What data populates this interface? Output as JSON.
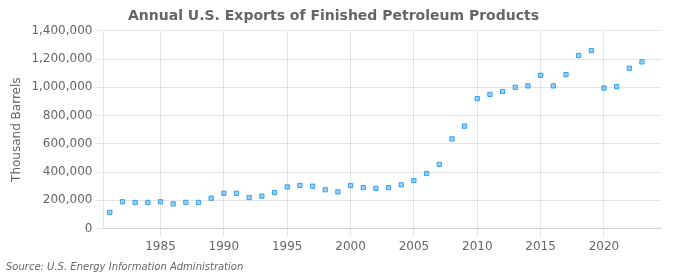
{
  "chart_data": {
    "type": "scatter",
    "title": "Annual U.S. Exports of Finished Petroleum Products",
    "ylabel": "Thousand Barrels",
    "annotations": [
      "Source: U.S. Energy Information Administration"
    ],
    "x": [
      1981,
      1982,
      1983,
      1984,
      1985,
      1986,
      1987,
      1988,
      1989,
      1990,
      1991,
      1992,
      1993,
      1994,
      1995,
      1996,
      1997,
      1998,
      1999,
      2000,
      2001,
      2002,
      2003,
      2004,
      2005,
      2006,
      2007,
      2008,
      2009,
      2010,
      2011,
      2012,
      2013,
      2014,
      2015,
      2016,
      2017,
      2018,
      2019,
      2020,
      2021,
      2022,
      2023
    ],
    "values": [
      115000,
      190000,
      185000,
      185000,
      190000,
      175000,
      185000,
      185000,
      215000,
      250000,
      250000,
      220000,
      230000,
      255000,
      295000,
      305000,
      300000,
      275000,
      260000,
      305000,
      290000,
      285000,
      290000,
      310000,
      340000,
      390000,
      455000,
      635000,
      725000,
      920000,
      950000,
      970000,
      1000000,
      1010000,
      1085000,
      1010000,
      1090000,
      1225000,
      1260000,
      995000,
      1005000,
      1135000,
      1180000
    ],
    "marker": "square",
    "xlim": [
      1980.5,
      2024.5
    ],
    "xticks": [
      1985,
      1990,
      1995,
      2000,
      2005,
      2010,
      2015,
      2020
    ],
    "ylim": [
      0,
      1400000
    ],
    "yticks": [
      0,
      {
        "value": 200000,
        "label": "200,000"
      },
      {
        "value": 400000,
        "label": "400,000"
      },
      {
        "value": 600000,
        "label": "600,000"
      },
      {
        "value": 800000,
        "label": "800,000"
      },
      {
        "value": 1000000,
        "label": "1,000,000"
      },
      {
        "value": 1200000,
        "label": "1,200,000"
      },
      {
        "value": 1400000,
        "label": "1,400,000"
      }
    ],
    "grid": true
  }
}
